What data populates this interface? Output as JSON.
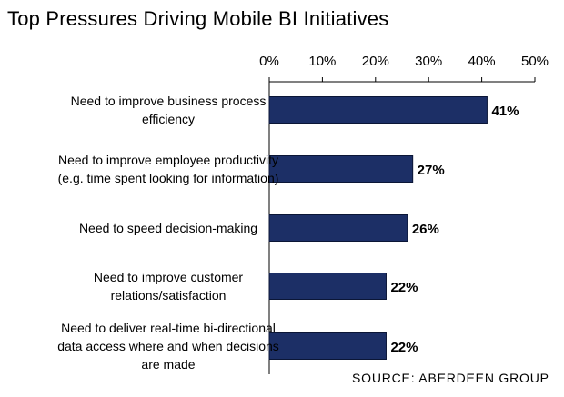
{
  "title": "Top Pressures Driving Mobile BI Initiatives",
  "source": "SOURCE: ABERDEEN GROUP",
  "chart_data": {
    "type": "bar",
    "orientation": "horizontal",
    "categories": [
      [
        "Need to improve business process",
        "efficiency"
      ],
      [
        "Need to improve employee productivity",
        "(e.g. time spent looking for information)"
      ],
      [
        "Need to speed decision-making"
      ],
      [
        "Need to improve customer",
        "relations/satisfaction"
      ],
      [
        "Need to deliver real-time bi-directional",
        "data access where and when decisions",
        "are made"
      ]
    ],
    "values": [
      41,
      27,
      26,
      22,
      22
    ],
    "value_labels": [
      "41%",
      "27%",
      "26%",
      "22%",
      "22%"
    ],
    "xlim": [
      0,
      50
    ],
    "ticks": [
      "0%",
      "10%",
      "20%",
      "30%",
      "40%",
      "50%"
    ],
    "axis_position": "top",
    "grid": false,
    "bar_color": "#1c2f66"
  }
}
